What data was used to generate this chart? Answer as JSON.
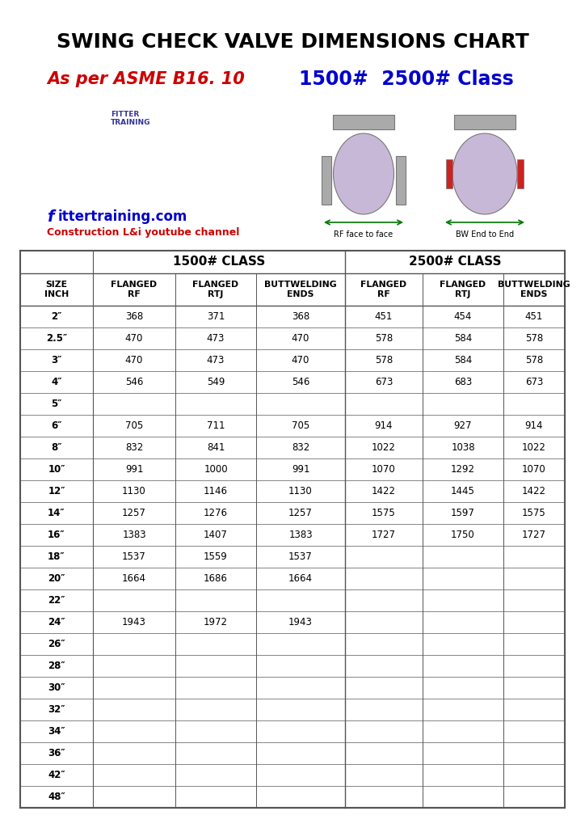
{
  "title": "SWING CHECK VALVE DIMENSIONS CHART",
  "subtitle_red": "As per ASME B16. 10",
  "subtitle_blue": "1500#  2500# Class",
  "website": "fittertraining.com",
  "channel": "Construction L&i youtube channel",
  "bg_color": "#ffffff",
  "table_header_1500": "1500# CLASS",
  "table_header_2500": "2500# CLASS",
  "sizes": [
    "2″",
    "2.5″",
    "3″",
    "4″",
    "5″",
    "6″",
    "8″",
    "10″",
    "12″",
    "14″",
    "16″",
    "18″",
    "20″",
    "22″",
    "24″",
    "26″",
    "28″",
    "30″",
    "32″",
    "34″",
    "36″",
    "42″",
    "48″"
  ],
  "data_1500_rf": [
    "368",
    "470",
    "470",
    "546",
    "",
    "705",
    "832",
    "991",
    "1130",
    "1257",
    "1383",
    "1537",
    "1664",
    "",
    "1943",
    "",
    "",
    "",
    "",
    "",
    "",
    "",
    ""
  ],
  "data_1500_rtj": [
    "371",
    "473",
    "473",
    "549",
    "",
    "711",
    "841",
    "1000",
    "1146",
    "1276",
    "1407",
    "1559",
    "1686",
    "",
    "1972",
    "",
    "",
    "",
    "",
    "",
    "",
    "",
    ""
  ],
  "data_1500_bw": [
    "368",
    "470",
    "470",
    "546",
    "",
    "705",
    "832",
    "991",
    "1130",
    "1257",
    "1383",
    "1537",
    "1664",
    "",
    "1943",
    "",
    "",
    "",
    "",
    "",
    "",
    "",
    ""
  ],
  "data_2500_rf": [
    "451",
    "578",
    "578",
    "673",
    "",
    "914",
    "1022",
    "1070",
    "1422",
    "1575",
    "1727",
    "",
    "",
    "",
    "",
    "",
    "",
    "",
    "",
    "",
    "",
    "",
    ""
  ],
  "data_2500_rtj": [
    "454",
    "584",
    "584",
    "683",
    "",
    "927",
    "1038",
    "1292",
    "1445",
    "1597",
    "1750",
    "",
    "",
    "",
    "",
    "",
    "",
    "",
    "",
    "",
    "",
    "",
    ""
  ],
  "data_2500_bw": [
    "451",
    "578",
    "578",
    "673",
    "",
    "914",
    "1022",
    "1070",
    "1422",
    "1575",
    "1727",
    "",
    "",
    "",
    "",
    "",
    "",
    "",
    "",
    "",
    "",
    "",
    ""
  ],
  "border_color": "#555555",
  "text_color": "#000000",
  "title_color": "#000000",
  "red_color": "#cc0000",
  "blue_color": "#0000cc",
  "green_color": "#007700"
}
